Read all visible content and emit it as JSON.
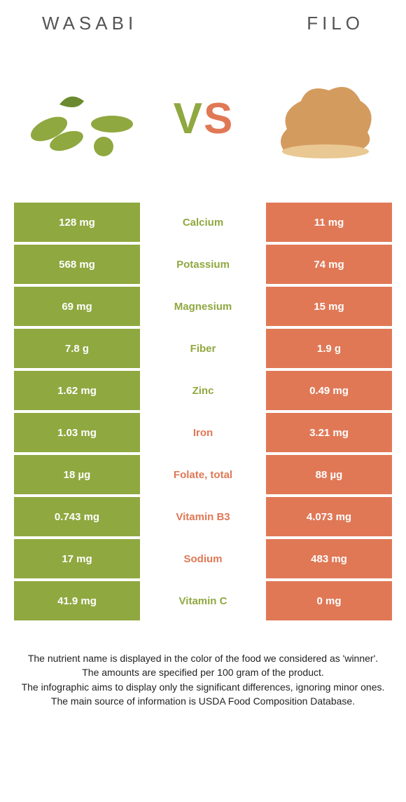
{
  "colors": {
    "left_bg": "#8fa840",
    "right_bg": "#e07856",
    "left_text": "#8fa840",
    "right_text": "#e07856",
    "white": "#ffffff"
  },
  "header": {
    "left_title": "WASABI",
    "right_title": "FILO",
    "vs_v": "V",
    "vs_s": "S"
  },
  "rows": [
    {
      "left": "128 mg",
      "label": "Calcium",
      "right": "11 mg",
      "winner": "left"
    },
    {
      "left": "568 mg",
      "label": "Potassium",
      "right": "74 mg",
      "winner": "left"
    },
    {
      "left": "69 mg",
      "label": "Magnesium",
      "right": "15 mg",
      "winner": "left"
    },
    {
      "left": "7.8 g",
      "label": "Fiber",
      "right": "1.9 g",
      "winner": "left"
    },
    {
      "left": "1.62 mg",
      "label": "Zinc",
      "right": "0.49 mg",
      "winner": "left"
    },
    {
      "left": "1.03 mg",
      "label": "Iron",
      "right": "3.21 mg",
      "winner": "right"
    },
    {
      "left": "18 µg",
      "label": "Folate, total",
      "right": "88 µg",
      "winner": "right"
    },
    {
      "left": "0.743 mg",
      "label": "Vitamin B3",
      "right": "4.073 mg",
      "winner": "right"
    },
    {
      "left": "17 mg",
      "label": "Sodium",
      "right": "483 mg",
      "winner": "right"
    },
    {
      "left": "41.9 mg",
      "label": "Vitamin C",
      "right": "0 mg",
      "winner": "left"
    }
  ],
  "footer": {
    "line1": "The nutrient name is displayed in the color of the food we considered as 'winner'.",
    "line2": "The amounts are specified per 100 gram of the product.",
    "line3": "The infographic aims to display only the significant differences, ignoring minor ones.",
    "line4": "The main source of information is USDA Food Composition Database."
  }
}
